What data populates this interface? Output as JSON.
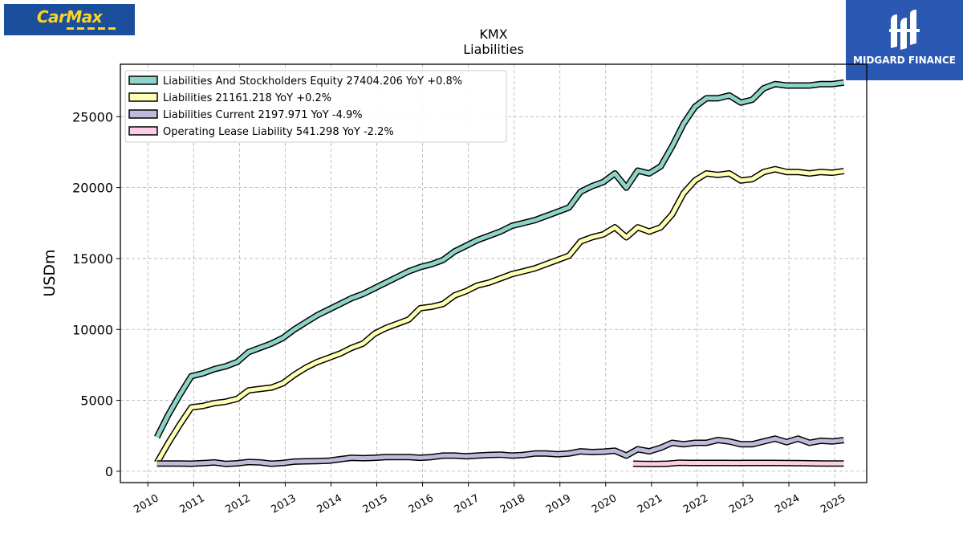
{
  "brand": {
    "left_logo": "CarMax",
    "right_logo": "MIDGARD FINANCE"
  },
  "chart_data": {
    "type": "line",
    "title": "KMX",
    "subtitle": "Liabilities",
    "ylabel": "USDm",
    "xlabel": "",
    "xlim": [
      2009.4,
      2025.7
    ],
    "ylim": [
      -800,
      28700
    ],
    "xticks": [
      2010,
      2011,
      2012,
      2013,
      2014,
      2015,
      2016,
      2017,
      2018,
      2019,
      2020,
      2021,
      2022,
      2023,
      2024,
      2025
    ],
    "yticks": [
      0,
      5000,
      10000,
      15000,
      20000,
      25000
    ],
    "grid": true,
    "legend_position": "top-left",
    "series": [
      {
        "name": "Liabilities And Stockholders Equity",
        "legend": "Liabilities And Stockholders Equity  27404.206 YoY +0.8%",
        "color": "#8dd3c7",
        "x": [
          2010.2,
          2010.45,
          2010.7,
          2010.95,
          2011.2,
          2011.45,
          2011.7,
          2011.95,
          2012.2,
          2012.45,
          2012.7,
          2012.95,
          2013.2,
          2013.45,
          2013.7,
          2013.95,
          2014.2,
          2014.45,
          2014.7,
          2014.95,
          2015.2,
          2015.45,
          2015.7,
          2015.95,
          2016.2,
          2016.45,
          2016.7,
          2016.95,
          2017.2,
          2017.45,
          2017.7,
          2017.95,
          2018.2,
          2018.45,
          2018.7,
          2018.95,
          2019.2,
          2019.45,
          2019.7,
          2019.95,
          2020.2,
          2020.45,
          2020.7,
          2020.95,
          2021.2,
          2021.45,
          2021.7,
          2021.95,
          2022.2,
          2022.45,
          2022.7,
          2022.95,
          2023.2,
          2023.45,
          2023.7,
          2023.95,
          2024.2,
          2024.45,
          2024.7,
          2024.95,
          2025.2
        ],
        "values": [
          2400,
          4000,
          5400,
          6700,
          6900,
          7200,
          7400,
          7700,
          8400,
          8700,
          9000,
          9400,
          10000,
          10500,
          11000,
          11400,
          11800,
          12200,
          12500,
          12900,
          13300,
          13700,
          14100,
          14400,
          14600,
          14900,
          15500,
          15900,
          16300,
          16600,
          16900,
          17300,
          17500,
          17700,
          18000,
          18300,
          18600,
          19700,
          20100,
          20400,
          21000,
          20000,
          21200,
          21000,
          21500,
          22900,
          24500,
          25700,
          26300,
          26300,
          26500,
          26000,
          26200,
          27000,
          27300,
          27200,
          27200,
          27200,
          27300,
          27300,
          27404
        ]
      },
      {
        "name": "Liabilities",
        "legend": "Liabilities  21161.218 YoY +0.2%",
        "color": "#ffffb3",
        "x": [
          2010.2,
          2010.45,
          2010.7,
          2010.95,
          2011.2,
          2011.45,
          2011.7,
          2011.95,
          2012.2,
          2012.45,
          2012.7,
          2012.95,
          2013.2,
          2013.45,
          2013.7,
          2013.95,
          2014.2,
          2014.45,
          2014.7,
          2014.95,
          2015.2,
          2015.45,
          2015.7,
          2015.95,
          2016.2,
          2016.45,
          2016.7,
          2016.95,
          2017.2,
          2017.45,
          2017.7,
          2017.95,
          2018.2,
          2018.45,
          2018.7,
          2018.95,
          2019.2,
          2019.45,
          2019.7,
          2019.95,
          2020.2,
          2020.45,
          2020.7,
          2020.95,
          2021.2,
          2021.45,
          2021.7,
          2021.95,
          2022.2,
          2022.45,
          2022.7,
          2022.95,
          2023.2,
          2023.45,
          2023.7,
          2023.95,
          2024.2,
          2024.45,
          2024.7,
          2024.95,
          2025.2
        ],
        "values": [
          600,
          2000,
          3300,
          4500,
          4600,
          4800,
          4900,
          5100,
          5700,
          5800,
          5900,
          6200,
          6800,
          7300,
          7700,
          8000,
          8300,
          8700,
          9000,
          9700,
          10100,
          10400,
          10700,
          11500,
          11600,
          11800,
          12400,
          12700,
          13100,
          13300,
          13600,
          13900,
          14100,
          14300,
          14600,
          14900,
          15200,
          16200,
          16500,
          16700,
          17200,
          16500,
          17200,
          16900,
          17200,
          18100,
          19600,
          20500,
          21000,
          20900,
          21000,
          20500,
          20600,
          21100,
          21300,
          21100,
          21100,
          21000,
          21100,
          21050,
          21161
        ]
      },
      {
        "name": "Liabilities Current",
        "legend": "Liabilities Current  2197.971 YoY -4.9%",
        "color": "#bebada",
        "x": [
          2010.2,
          2010.45,
          2010.7,
          2010.95,
          2011.2,
          2011.45,
          2011.7,
          2011.95,
          2012.2,
          2012.45,
          2012.7,
          2012.95,
          2013.2,
          2013.45,
          2013.7,
          2013.95,
          2014.2,
          2014.45,
          2014.7,
          2014.95,
          2015.2,
          2015.45,
          2015.7,
          2015.95,
          2016.2,
          2016.45,
          2016.7,
          2016.95,
          2017.2,
          2017.45,
          2017.7,
          2017.95,
          2018.2,
          2018.45,
          2018.7,
          2018.95,
          2019.2,
          2019.45,
          2019.7,
          2019.95,
          2020.2,
          2020.45,
          2020.7,
          2020.95,
          2021.2,
          2021.45,
          2021.7,
          2021.95,
          2022.2,
          2022.45,
          2022.7,
          2022.95,
          2023.2,
          2023.45,
          2023.7,
          2023.95,
          2024.2,
          2024.45,
          2024.7,
          2024.95,
          2025.2
        ],
        "values": [
          550,
          540,
          540,
          530,
          570,
          620,
          520,
          560,
          650,
          620,
          530,
          580,
          680,
          700,
          720,
          740,
          850,
          950,
          920,
          950,
          1000,
          1000,
          1000,
          950,
          1000,
          1100,
          1100,
          1050,
          1100,
          1150,
          1170,
          1100,
          1150,
          1250,
          1250,
          1200,
          1250,
          1400,
          1350,
          1380,
          1450,
          1100,
          1550,
          1400,
          1650,
          2000,
          1900,
          2000,
          2000,
          2200,
          2100,
          1900,
          1900,
          2100,
          2300,
          2050,
          2300,
          2000,
          2150,
          2100,
          2198
        ]
      },
      {
        "name": "Operating Lease Liability",
        "legend": "Operating Lease Liability  541.298 YoY -2.2%",
        "color": "#fccde5",
        "x": [
          2020.6,
          2020.85,
          2021.1,
          2021.35,
          2021.6,
          2021.85,
          2022.1,
          2022.35,
          2022.6,
          2022.85,
          2023.1,
          2023.35,
          2023.6,
          2023.85,
          2024.1,
          2024.35,
          2024.6,
          2024.85,
          2025.2
        ],
        "values": [
          530,
          520,
          510,
          530,
          600,
          590,
          590,
          585,
          585,
          580,
          585,
          585,
          585,
          580,
          575,
          565,
          555,
          550,
          541
        ]
      }
    ]
  }
}
